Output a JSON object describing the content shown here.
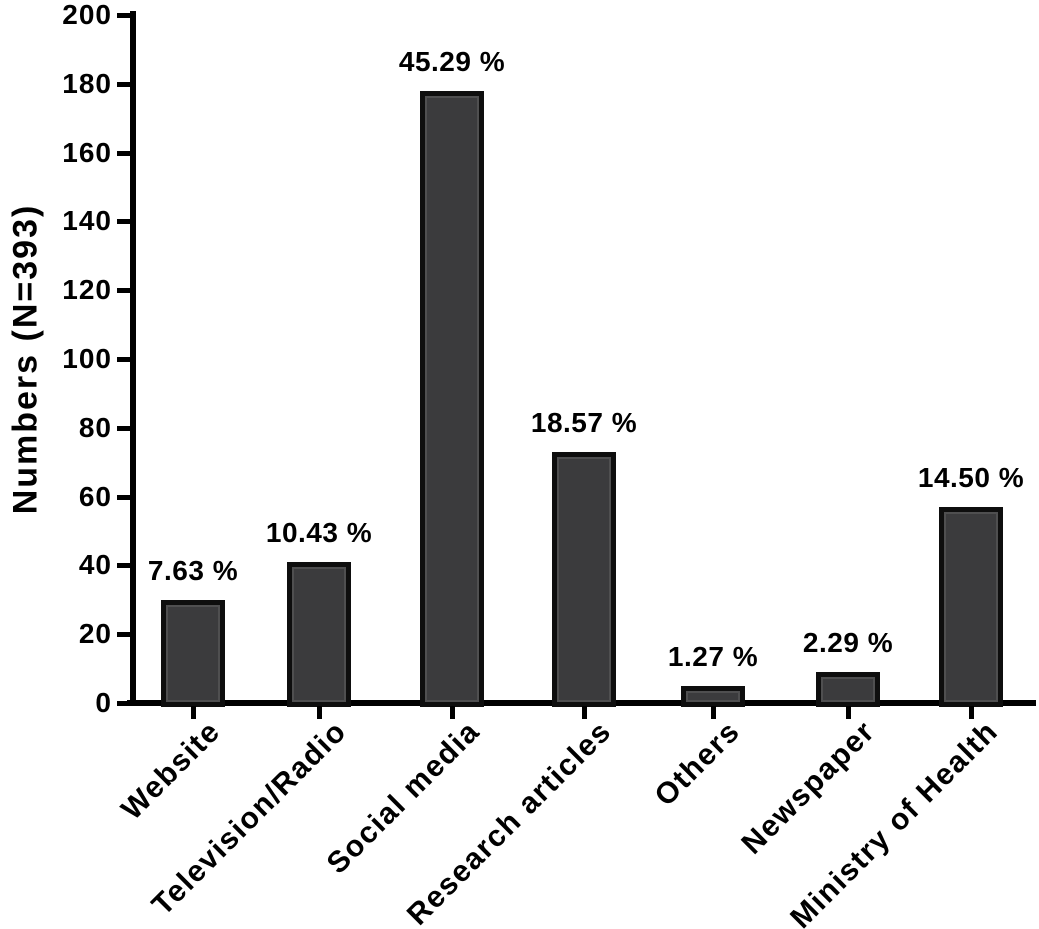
{
  "chart_data": {
    "type": "bar",
    "title": "",
    "xlabel": "",
    "ylabel": "Numbers (N=393)",
    "sample_size": 393,
    "categories": [
      "Website",
      "Television/Radio",
      "Social media",
      "Research articles",
      "Others",
      "Newspaper",
      "Ministry of Health"
    ],
    "values": [
      30,
      41,
      178,
      73,
      5,
      9,
      57
    ],
    "value_labels": [
      "7.63 %",
      "10.43 %",
      "45.29 %",
      "18.57 %",
      "1.27 %",
      "2.29 %",
      "14.50 %"
    ],
    "percentages": [
      7.63,
      10.43,
      45.29,
      18.57,
      1.27,
      2.29,
      14.5
    ],
    "ylim": [
      0,
      200
    ],
    "yticks": [
      0,
      20,
      40,
      60,
      80,
      100,
      120,
      140,
      160,
      180,
      200
    ],
    "grid": false,
    "legend": "none",
    "category_label_rotation_deg": 45,
    "colors": {
      "bar_fill": "#3b3b3d",
      "bar_border": "#0e0e0e",
      "axis": "#000000",
      "text": "#000000",
      "background": "#ffffff"
    }
  }
}
